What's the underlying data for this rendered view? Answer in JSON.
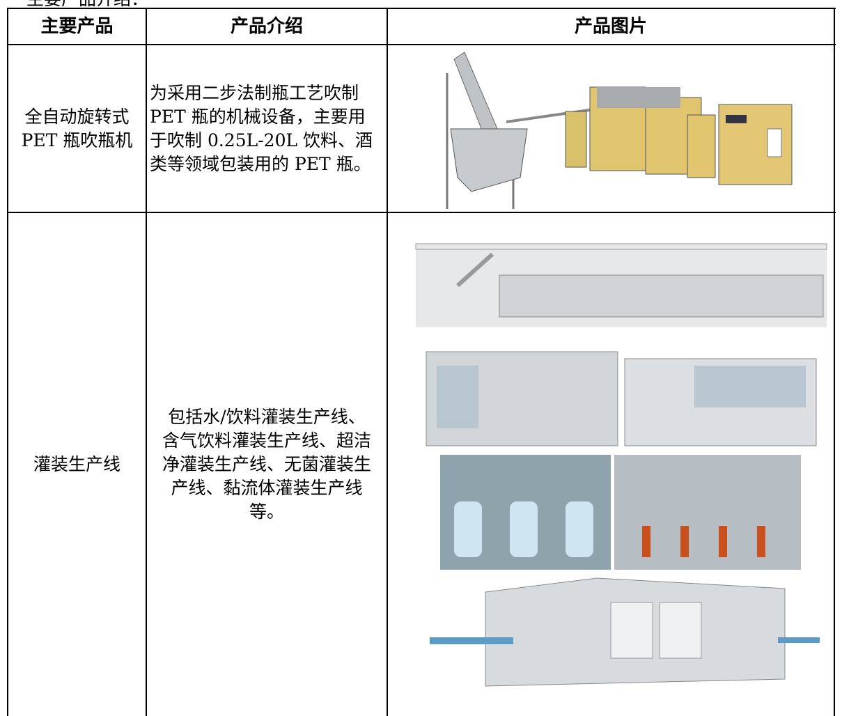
{
  "heading": "主要产品介绍：",
  "table": {
    "header": [
      "主要产品",
      "产品介绍",
      "产品图片"
    ],
    "rows": [
      {
        "name": [
          "全自动旋转式",
          "PET 瓶吹瓶机"
        ],
        "description": [
          "为采用二步法制瓶工艺吹制",
          "PET 瓶的机械设备，主要用",
          "于吹制 0.25L-20L 饮料、酒",
          "类等领域包装用的 PET 瓶。"
        ]
      },
      {
        "name": [
          "灌装生产线"
        ],
        "description": [
          "包括水/饮料灌装生产线、",
          "含气饮料灌装生产线、超洁",
          "净灌装生产线、无菌灌装生",
          "产线、黏流体灌装生产线",
          "等。"
        ]
      }
    ]
  }
}
